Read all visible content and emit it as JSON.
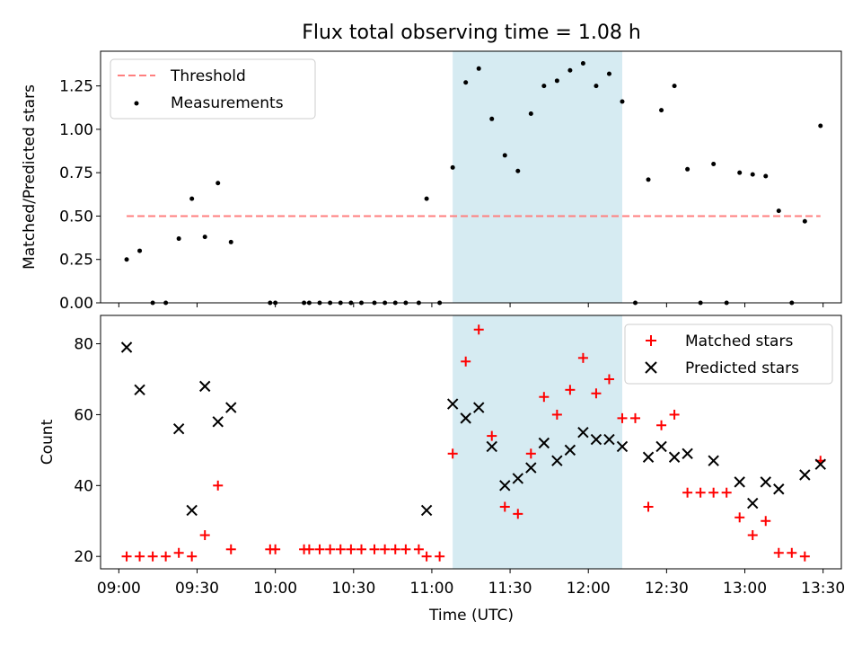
{
  "chart_data": [
    {
      "type": "scatter",
      "title": "Flux total observing time = 1.08 h",
      "xlabel": "",
      "ylabel": "Matched/Predicted stars",
      "xlim": [
        "08:53",
        "13:37"
      ],
      "ylim": [
        0,
        1.45
      ],
      "yticks": [
        "0.00",
        "0.25",
        "0.50",
        "0.75",
        "1.00",
        "1.25"
      ],
      "legend_position": "top-left",
      "shaded_interval": [
        "11:08",
        "12:13"
      ],
      "shaded_color": "#add8e6",
      "threshold": {
        "name": "Threshold",
        "value": 0.5,
        "x_range": [
          "09:03",
          "13:29"
        ],
        "color": "#ff7f7f",
        "style": "dashed"
      },
      "series": [
        {
          "name": "Measurements",
          "marker": "dot",
          "color": "#000000",
          "points": [
            [
              "09:03",
              0.25
            ],
            [
              "09:08",
              0.3
            ],
            [
              "09:13",
              0.0
            ],
            [
              "09:18",
              0.0
            ],
            [
              "09:23",
              0.37
            ],
            [
              "09:28",
              0.6
            ],
            [
              "09:33",
              0.38
            ],
            [
              "09:38",
              0.69
            ],
            [
              "09:43",
              0.35
            ],
            [
              "09:58",
              0.0
            ],
            [
              "10:00",
              0.0
            ],
            [
              "10:11",
              0.0
            ],
            [
              "10:13",
              0.0
            ],
            [
              "10:17",
              0.0
            ],
            [
              "10:21",
              0.0
            ],
            [
              "10:25",
              0.0
            ],
            [
              "10:29",
              0.0
            ],
            [
              "10:33",
              0.0
            ],
            [
              "10:38",
              0.0
            ],
            [
              "10:42",
              0.0
            ],
            [
              "10:46",
              0.0
            ],
            [
              "10:50",
              0.0
            ],
            [
              "10:55",
              0.0
            ],
            [
              "10:58",
              0.6
            ],
            [
              "11:03",
              0.0
            ],
            [
              "11:08",
              0.78
            ],
            [
              "11:13",
              1.27
            ],
            [
              "11:18",
              1.35
            ],
            [
              "11:23",
              1.06
            ],
            [
              "11:28",
              0.85
            ],
            [
              "11:33",
              0.76
            ],
            [
              "11:38",
              1.09
            ],
            [
              "11:43",
              1.25
            ],
            [
              "11:48",
              1.28
            ],
            [
              "11:53",
              1.34
            ],
            [
              "11:58",
              1.38
            ],
            [
              "12:03",
              1.25
            ],
            [
              "12:08",
              1.32
            ],
            [
              "12:13",
              1.16
            ],
            [
              "12:18",
              0.0
            ],
            [
              "12:23",
              0.71
            ],
            [
              "12:28",
              1.11
            ],
            [
              "12:33",
              1.25
            ],
            [
              "12:38",
              0.77
            ],
            [
              "12:43",
              0.0
            ],
            [
              "12:48",
              0.8
            ],
            [
              "12:53",
              0.0
            ],
            [
              "12:58",
              0.75
            ],
            [
              "13:03",
              0.74
            ],
            [
              "13:08",
              0.73
            ],
            [
              "13:13",
              0.53
            ],
            [
              "13:18",
              0.0
            ],
            [
              "13:23",
              0.47
            ],
            [
              "13:29",
              1.02
            ]
          ]
        }
      ]
    },
    {
      "type": "scatter",
      "title": "",
      "xlabel": "Time (UTC)",
      "ylabel": "Count",
      "xlim": [
        "08:53",
        "13:37"
      ],
      "ylim": [
        16.5,
        88
      ],
      "yticks": [
        "20",
        "40",
        "60",
        "80"
      ],
      "xticks": [
        "09:00",
        "09:30",
        "10:00",
        "10:30",
        "11:00",
        "11:30",
        "12:00",
        "12:30",
        "13:00",
        "13:30"
      ],
      "legend_position": "top-right",
      "shaded_interval": [
        "11:08",
        "12:13"
      ],
      "series": [
        {
          "name": "Matched stars",
          "marker": "plus",
          "color": "#ff0000",
          "points": [
            [
              "09:03",
              20
            ],
            [
              "09:08",
              20
            ],
            [
              "09:13",
              20
            ],
            [
              "09:18",
              20
            ],
            [
              "09:23",
              21
            ],
            [
              "09:28",
              20
            ],
            [
              "09:33",
              26
            ],
            [
              "09:38",
              40
            ],
            [
              "09:43",
              22
            ],
            [
              "09:58",
              22
            ],
            [
              "10:00",
              22
            ],
            [
              "10:11",
              22
            ],
            [
              "10:13",
              22
            ],
            [
              "10:17",
              22
            ],
            [
              "10:21",
              22
            ],
            [
              "10:25",
              22
            ],
            [
              "10:29",
              22
            ],
            [
              "10:33",
              22
            ],
            [
              "10:38",
              22
            ],
            [
              "10:42",
              22
            ],
            [
              "10:46",
              22
            ],
            [
              "10:50",
              22
            ],
            [
              "10:55",
              22
            ],
            [
              "10:58",
              20
            ],
            [
              "11:03",
              20
            ],
            [
              "11:08",
              49
            ],
            [
              "11:13",
              75
            ],
            [
              "11:18",
              84
            ],
            [
              "11:23",
              54
            ],
            [
              "11:28",
              34
            ],
            [
              "11:33",
              32
            ],
            [
              "11:38",
              49
            ],
            [
              "11:43",
              65
            ],
            [
              "11:48",
              60
            ],
            [
              "11:53",
              67
            ],
            [
              "11:58",
              76
            ],
            [
              "12:03",
              66
            ],
            [
              "12:08",
              70
            ],
            [
              "12:13",
              59
            ],
            [
              "12:18",
              59
            ],
            [
              "12:23",
              34
            ],
            [
              "12:28",
              57
            ],
            [
              "12:33",
              60
            ],
            [
              "12:38",
              38
            ],
            [
              "12:43",
              38
            ],
            [
              "12:48",
              38
            ],
            [
              "12:53",
              38
            ],
            [
              "12:58",
              31
            ],
            [
              "13:03",
              26
            ],
            [
              "13:08",
              30
            ],
            [
              "13:13",
              21
            ],
            [
              "13:18",
              21
            ],
            [
              "13:23",
              20
            ],
            [
              "13:29",
              47
            ]
          ]
        },
        {
          "name": "Predicted stars",
          "marker": "x",
          "color": "#000000",
          "points": [
            [
              "09:03",
              79
            ],
            [
              "09:08",
              67
            ],
            [
              "09:23",
              56
            ],
            [
              "09:28",
              33
            ],
            [
              "09:33",
              68
            ],
            [
              "09:38",
              58
            ],
            [
              "09:43",
              62
            ],
            [
              "10:58",
              33
            ],
            [
              "11:08",
              63
            ],
            [
              "11:13",
              59
            ],
            [
              "11:18",
              62
            ],
            [
              "11:23",
              51
            ],
            [
              "11:28",
              40
            ],
            [
              "11:33",
              42
            ],
            [
              "11:38",
              45
            ],
            [
              "11:43",
              52
            ],
            [
              "11:48",
              47
            ],
            [
              "11:53",
              50
            ],
            [
              "11:58",
              55
            ],
            [
              "12:03",
              53
            ],
            [
              "12:08",
              53
            ],
            [
              "12:13",
              51
            ],
            [
              "12:23",
              48
            ],
            [
              "12:28",
              51
            ],
            [
              "12:33",
              48
            ],
            [
              "12:38",
              49
            ],
            [
              "12:48",
              47
            ],
            [
              "12:58",
              41
            ],
            [
              "13:03",
              35
            ],
            [
              "13:08",
              41
            ],
            [
              "13:13",
              39
            ],
            [
              "13:23",
              43
            ],
            [
              "13:29",
              46
            ]
          ]
        }
      ]
    }
  ]
}
